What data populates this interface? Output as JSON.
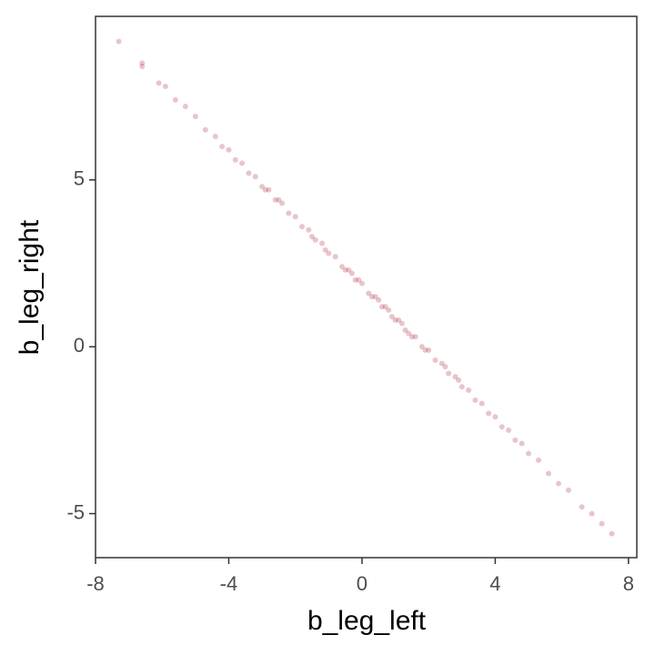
{
  "chart_data": {
    "type": "scatter",
    "x_label": "b_leg_left",
    "y_label": "b_leg_right",
    "color": "#a3162a",
    "xlim": [
      -8,
      8.25
    ],
    "ylim": [
      -6.32,
      9.9
    ],
    "xticks": [
      -8,
      -4,
      0,
      4,
      8
    ],
    "yticks": [
      -5,
      0,
      5
    ],
    "x": [
      -7.3,
      -6.6,
      -6.6,
      -6.1,
      -5.9,
      -5.6,
      -5.3,
      -5.0,
      -4.7,
      -4.4,
      -4.2,
      -4.0,
      -3.8,
      -3.6,
      -3.4,
      -3.2,
      -3.0,
      -2.8,
      -2.6,
      -2.4,
      -2.2,
      -2.0,
      -1.8,
      -1.6,
      -1.4,
      -1.2,
      -1.0,
      -0.8,
      -0.6,
      -0.4,
      -0.2,
      0.0,
      0.2,
      0.4,
      0.6,
      0.8,
      1.0,
      1.2,
      1.4,
      1.6,
      1.8,
      2.0,
      2.2,
      2.4,
      2.6,
      2.8,
      3.0,
      3.2,
      3.4,
      3.6,
      3.8,
      4.0,
      4.2,
      4.4,
      4.6,
      4.8,
      5.0,
      5.3,
      5.6,
      5.9,
      6.2,
      6.6,
      6.9,
      7.2,
      7.5,
      -2.5,
      -1.5,
      -0.5,
      0.5,
      1.5,
      2.5,
      -1.1,
      -0.1,
      0.9,
      1.9,
      2.9,
      -2.9,
      -0.3,
      0.3,
      1.1,
      1.3,
      0.7
    ],
    "values": [
      9.15,
      8.4,
      8.5,
      7.9,
      7.8,
      7.4,
      7.2,
      6.9,
      6.5,
      6.3,
      6.0,
      5.9,
      5.6,
      5.5,
      5.2,
      5.1,
      4.8,
      4.7,
      4.4,
      4.3,
      4.0,
      3.9,
      3.6,
      3.5,
      3.2,
      3.1,
      2.8,
      2.7,
      2.4,
      2.3,
      2.0,
      1.9,
      1.6,
      1.5,
      1.2,
      1.1,
      0.8,
      0.7,
      0.4,
      0.3,
      0.0,
      -0.1,
      -0.4,
      -0.5,
      -0.8,
      -0.9,
      -1.2,
      -1.3,
      -1.6,
      -1.7,
      -2.0,
      -2.1,
      -2.4,
      -2.5,
      -2.8,
      -2.9,
      -3.2,
      -3.4,
      -3.8,
      -4.1,
      -4.3,
      -4.8,
      -5.0,
      -5.3,
      -5.6,
      4.4,
      3.3,
      2.3,
      1.4,
      0.3,
      -0.6,
      2.9,
      2.0,
      0.9,
      -0.1,
      -1.0,
      4.7,
      2.2,
      1.5,
      0.8,
      0.5,
      1.2
    ]
  }
}
